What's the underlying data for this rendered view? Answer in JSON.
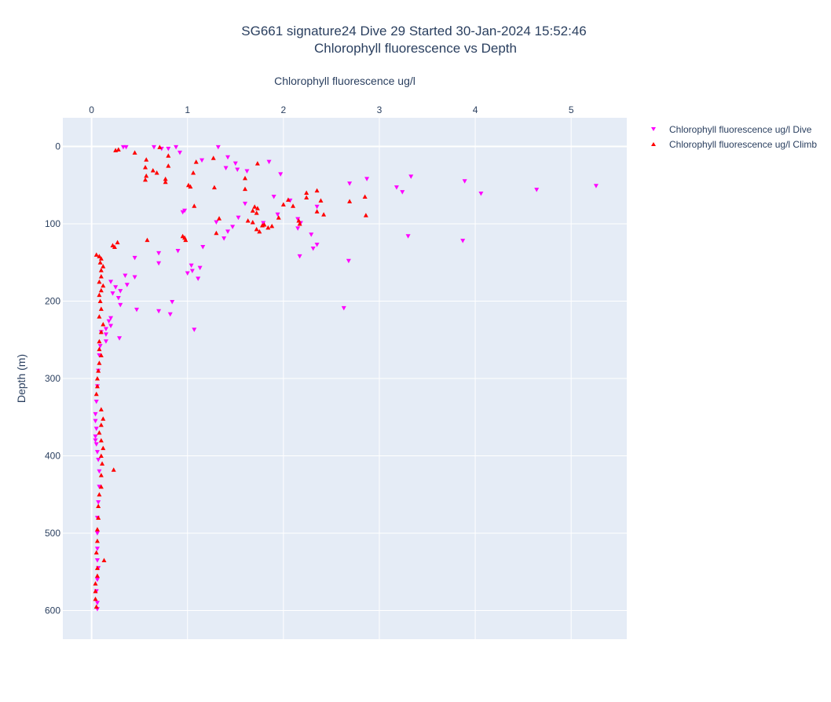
{
  "chart_data": {
    "type": "scatter",
    "title": "SG661 signature24 Dive 29 Started 30-Jan-2024 15:52:46",
    "subtitle": "Chlorophyll fluorescence vs Depth",
    "xlabel": "Chlorophyll fluorescence ug/l",
    "ylabel": "Depth (m)",
    "x_axis_position": "top",
    "y_reversed": true,
    "xlim": [
      -0.3,
      5.58
    ],
    "ylim": [
      -37,
      637
    ],
    "x_ticks": [
      0,
      1,
      2,
      3,
      4,
      5
    ],
    "y_ticks": [
      0,
      100,
      200,
      300,
      400,
      500,
      600
    ],
    "grid": true,
    "legend_position": "top-right",
    "series": [
      {
        "name": "Chlorophyll fluorescence ug/l Dive",
        "marker": "triangle-down",
        "color": "#ff00ff",
        "points": [
          [
            0.33,
            1
          ],
          [
            0.36,
            1
          ],
          [
            0.65,
            1
          ],
          [
            0.73,
            3
          ],
          [
            0.88,
            1
          ],
          [
            1.32,
            1
          ],
          [
            0.8,
            3
          ],
          [
            0.92,
            8
          ],
          [
            1.42,
            14
          ],
          [
            1.15,
            18
          ],
          [
            1.85,
            20
          ],
          [
            1.5,
            22
          ],
          [
            1.4,
            28
          ],
          [
            1.52,
            30
          ],
          [
            1.62,
            32
          ],
          [
            1.97,
            36
          ],
          [
            3.33,
            39
          ],
          [
            2.87,
            42
          ],
          [
            2.69,
            48
          ],
          [
            3.89,
            45
          ],
          [
            3.18,
            53
          ],
          [
            3.24,
            59
          ],
          [
            4.06,
            61
          ],
          [
            4.64,
            56
          ],
          [
            5.26,
            51
          ],
          [
            1.9,
            65
          ],
          [
            2.07,
            70
          ],
          [
            1.6,
            74
          ],
          [
            2.35,
            78
          ],
          [
            0.97,
            83
          ],
          [
            0.95,
            85
          ],
          [
            1.94,
            88
          ],
          [
            1.53,
            92
          ],
          [
            1.3,
            98
          ],
          [
            1.79,
            99
          ],
          [
            2.15,
            94
          ],
          [
            2.18,
            99
          ],
          [
            1.47,
            104
          ],
          [
            2.15,
            106
          ],
          [
            1.42,
            110
          ],
          [
            2.29,
            114
          ],
          [
            1.38,
            119
          ],
          [
            3.3,
            116
          ],
          [
            3.87,
            122
          ],
          [
            2.35,
            127
          ],
          [
            2.31,
            132
          ],
          [
            1.16,
            130
          ],
          [
            0.9,
            135
          ],
          [
            0.7,
            138
          ],
          [
            2.17,
            142
          ],
          [
            0.45,
            144
          ],
          [
            2.68,
            148
          ],
          [
            0.7,
            151
          ],
          [
            1.04,
            154
          ],
          [
            1.13,
            157
          ],
          [
            1.05,
            161
          ],
          [
            1.0,
            164
          ],
          [
            0.35,
            167
          ],
          [
            0.45,
            169
          ],
          [
            1.11,
            171
          ],
          [
            0.2,
            175
          ],
          [
            0.37,
            179
          ],
          [
            0.25,
            182
          ],
          [
            0.3,
            187
          ],
          [
            0.22,
            190
          ],
          [
            0.28,
            196
          ],
          [
            0.3,
            205
          ],
          [
            0.84,
            201
          ],
          [
            0.47,
            211
          ],
          [
            0.7,
            213
          ],
          [
            0.82,
            217
          ],
          [
            2.63,
            209
          ],
          [
            0.2,
            222
          ],
          [
            0.18,
            226
          ],
          [
            0.2,
            232
          ],
          [
            0.15,
            236
          ],
          [
            1.07,
            237
          ],
          [
            0.1,
            240
          ],
          [
            0.15,
            243
          ],
          [
            0.29,
            248
          ],
          [
            0.15,
            252
          ],
          [
            0.09,
            258
          ],
          [
            0.08,
            270
          ],
          [
            0.07,
            290
          ],
          [
            0.06,
            310
          ],
          [
            0.05,
            330
          ],
          [
            0.04,
            346
          ],
          [
            0.04,
            355
          ],
          [
            0.05,
            365
          ],
          [
            0.04,
            375
          ],
          [
            0.04,
            380
          ],
          [
            0.05,
            385
          ],
          [
            0.06,
            395
          ],
          [
            0.07,
            405
          ],
          [
            0.08,
            420
          ],
          [
            0.08,
            440
          ],
          [
            0.07,
            460
          ],
          [
            0.06,
            480
          ],
          [
            0.06,
            500
          ],
          [
            0.06,
            520
          ],
          [
            0.06,
            535
          ],
          [
            0.07,
            545
          ],
          [
            0.06,
            560
          ],
          [
            0.05,
            575
          ],
          [
            0.06,
            590
          ],
          [
            0.06,
            598
          ]
        ]
      },
      {
        "name": "Chlorophyll fluorescence ug/l Climb",
        "marker": "triangle-up",
        "color": "#ff0000",
        "points": [
          [
            0.25,
            5
          ],
          [
            0.28,
            4
          ],
          [
            0.45,
            8
          ],
          [
            0.71,
            1
          ],
          [
            0.8,
            12
          ],
          [
            1.09,
            20
          ],
          [
            1.27,
            15
          ],
          [
            1.73,
            22
          ],
          [
            0.57,
            17
          ],
          [
            0.8,
            25
          ],
          [
            0.56,
            27
          ],
          [
            0.64,
            31
          ],
          [
            0.68,
            34
          ],
          [
            0.57,
            38
          ],
          [
            0.56,
            43
          ],
          [
            0.77,
            42
          ],
          [
            0.77,
            46
          ],
          [
            1.06,
            34
          ],
          [
            1.6,
            41
          ],
          [
            1.01,
            50
          ],
          [
            1.03,
            52
          ],
          [
            1.28,
            53
          ],
          [
            1.6,
            55
          ],
          [
            2.24,
            60
          ],
          [
            2.35,
            57
          ],
          [
            2.24,
            66
          ],
          [
            2.39,
            70
          ],
          [
            2.69,
            71
          ],
          [
            2.85,
            65
          ],
          [
            2.05,
            69
          ],
          [
            2.1,
            77
          ],
          [
            2.0,
            75
          ],
          [
            1.7,
            78
          ],
          [
            1.73,
            80
          ],
          [
            1.68,
            83
          ],
          [
            1.72,
            86
          ],
          [
            1.07,
            77
          ],
          [
            1.33,
            93
          ],
          [
            2.35,
            84
          ],
          [
            2.42,
            88
          ],
          [
            2.86,
            89
          ],
          [
            1.95,
            92
          ],
          [
            2.16,
            96
          ],
          [
            1.63,
            96
          ],
          [
            1.68,
            98
          ],
          [
            1.72,
            107
          ],
          [
            1.75,
            110
          ],
          [
            1.78,
            102
          ],
          [
            1.8,
            101
          ],
          [
            1.84,
            105
          ],
          [
            1.88,
            103
          ],
          [
            2.17,
            100
          ],
          [
            1.3,
            112
          ],
          [
            0.95,
            116
          ],
          [
            0.97,
            118
          ],
          [
            0.98,
            121
          ],
          [
            0.58,
            121
          ],
          [
            0.27,
            124
          ],
          [
            0.22,
            128
          ],
          [
            0.24,
            130
          ],
          [
            0.05,
            140
          ],
          [
            0.08,
            142
          ],
          [
            0.1,
            145
          ],
          [
            0.09,
            150
          ],
          [
            0.12,
            155
          ],
          [
            0.1,
            160
          ],
          [
            0.1,
            168
          ],
          [
            0.08,
            175
          ],
          [
            0.12,
            180
          ],
          [
            0.1,
            186
          ],
          [
            0.08,
            192
          ],
          [
            0.09,
            200
          ],
          [
            0.1,
            210
          ],
          [
            0.08,
            220
          ],
          [
            0.12,
            230
          ],
          [
            0.1,
            240
          ],
          [
            0.08,
            252
          ],
          [
            0.08,
            262
          ],
          [
            0.1,
            270
          ],
          [
            0.08,
            280
          ],
          [
            0.07,
            290
          ],
          [
            0.06,
            300
          ],
          [
            0.06,
            310
          ],
          [
            0.05,
            320
          ],
          [
            0.1,
            340
          ],
          [
            0.12,
            352
          ],
          [
            0.1,
            360
          ],
          [
            0.08,
            370
          ],
          [
            0.1,
            380
          ],
          [
            0.12,
            390
          ],
          [
            0.1,
            400
          ],
          [
            0.11,
            410
          ],
          [
            0.23,
            418
          ],
          [
            0.1,
            425
          ],
          [
            0.1,
            440
          ],
          [
            0.08,
            450
          ],
          [
            0.07,
            465
          ],
          [
            0.07,
            480
          ],
          [
            0.06,
            495
          ],
          [
            0.06,
            510
          ],
          [
            0.05,
            525
          ],
          [
            0.13,
            535
          ],
          [
            0.06,
            545
          ],
          [
            0.06,
            555
          ],
          [
            0.04,
            565
          ],
          [
            0.04,
            575
          ],
          [
            0.04,
            585
          ],
          [
            0.05,
            595
          ]
        ]
      }
    ]
  }
}
